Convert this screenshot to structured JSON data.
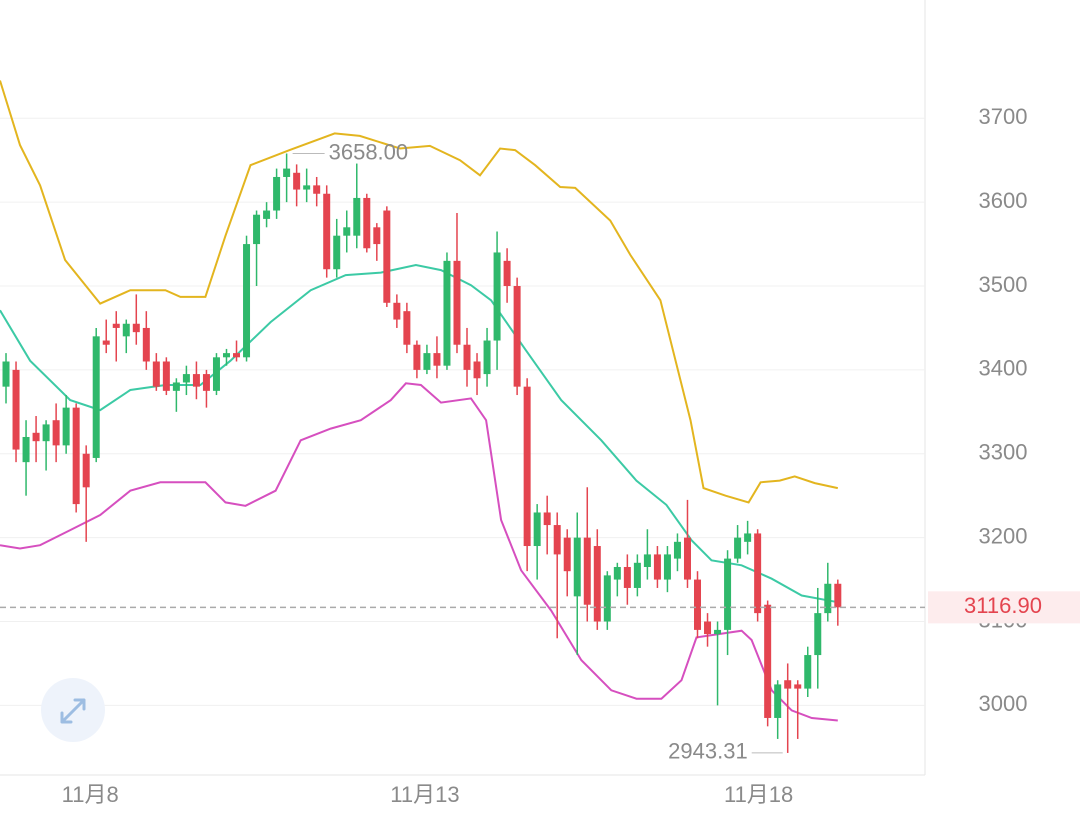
{
  "chart_data": {
    "type": "candlestick",
    "up_color": "#2fb86b",
    "down_color": "#e4444f",
    "ohlc": [
      [
        3380,
        3420,
        3360,
        3410
      ],
      [
        3400,
        3410,
        3290,
        3305
      ],
      [
        3290,
        3340,
        3250,
        3320
      ],
      [
        3325,
        3345,
        3290,
        3315
      ],
      [
        3315,
        3340,
        3280,
        3335
      ],
      [
        3340,
        3360,
        3290,
        3310
      ],
      [
        3310,
        3370,
        3300,
        3355
      ],
      [
        3355,
        3360,
        3230,
        3240
      ],
      [
        3300,
        3310,
        3195,
        3260
      ],
      [
        3295,
        3450,
        3290,
        3440
      ],
      [
        3435,
        3460,
        3420,
        3430
      ],
      [
        3455,
        3470,
        3410,
        3450
      ],
      [
        3440,
        3460,
        3420,
        3455
      ],
      [
        3455,
        3490,
        3430,
        3445
      ],
      [
        3450,
        3470,
        3400,
        3410
      ],
      [
        3410,
        3420,
        3375,
        3380
      ],
      [
        3410,
        3415,
        3370,
        3375
      ],
      [
        3375,
        3390,
        3350,
        3385
      ],
      [
        3385,
        3405,
        3370,
        3395
      ],
      [
        3395,
        3410,
        3365,
        3380
      ],
      [
        3395,
        3400,
        3355,
        3375
      ],
      [
        3375,
        3420,
        3370,
        3415
      ],
      [
        3415,
        3425,
        3405,
        3420
      ],
      [
        3420,
        3435,
        3410,
        3415
      ],
      [
        3415,
        3560,
        3410,
        3550
      ],
      [
        3550,
        3590,
        3500,
        3585
      ],
      [
        3580,
        3600,
        3570,
        3590
      ],
      [
        3590,
        3640,
        3580,
        3630
      ],
      [
        3630,
        3658,
        3600,
        3640
      ],
      [
        3635,
        3645,
        3595,
        3615
      ],
      [
        3615,
        3640,
        3600,
        3620
      ],
      [
        3620,
        3630,
        3595,
        3610
      ],
      [
        3610,
        3620,
        3510,
        3520
      ],
      [
        3520,
        3580,
        3510,
        3560
      ],
      [
        3560,
        3590,
        3540,
        3570
      ],
      [
        3560,
        3646,
        3545,
        3605
      ],
      [
        3605,
        3610,
        3540,
        3545
      ],
      [
        3570,
        3575,
        3530,
        3550
      ],
      [
        3590,
        3595,
        3475,
        3480
      ],
      [
        3480,
        3490,
        3450,
        3460
      ],
      [
        3470,
        3480,
        3420,
        3430
      ],
      [
        3430,
        3435,
        3390,
        3400
      ],
      [
        3400,
        3430,
        3395,
        3420
      ],
      [
        3420,
        3440,
        3390,
        3405
      ],
      [
        3405,
        3540,
        3400,
        3530
      ],
      [
        3530,
        3587,
        3420,
        3430
      ],
      [
        3430,
        3450,
        3380,
        3400
      ],
      [
        3410,
        3420,
        3370,
        3390
      ],
      [
        3395,
        3450,
        3380,
        3435
      ],
      [
        3435,
        3565,
        3400,
        3540
      ],
      [
        3530,
        3545,
        3480,
        3500
      ],
      [
        3500,
        3510,
        3370,
        3380
      ],
      [
        3380,
        3390,
        3160,
        3190
      ],
      [
        3190,
        3240,
        3150,
        3230
      ],
      [
        3230,
        3250,
        3180,
        3215
      ],
      [
        3215,
        3230,
        3080,
        3180
      ],
      [
        3200,
        3210,
        3130,
        3160
      ],
      [
        3130,
        3230,
        3060,
        3200
      ],
      [
        3200,
        3260,
        3100,
        3120
      ],
      [
        3190,
        3210,
        3090,
        3100
      ],
      [
        3100,
        3160,
        3090,
        3155
      ],
      [
        3150,
        3170,
        3130,
        3165
      ],
      [
        3165,
        3180,
        3120,
        3140
      ],
      [
        3140,
        3180,
        3130,
        3170
      ],
      [
        3165,
        3210,
        3150,
        3180
      ],
      [
        3180,
        3190,
        3140,
        3150
      ],
      [
        3150,
        3190,
        3135,
        3180
      ],
      [
        3175,
        3205,
        3160,
        3195
      ],
      [
        3200,
        3245,
        3140,
        3150
      ],
      [
        3150,
        3160,
        3080,
        3090
      ],
      [
        3100,
        3110,
        3070,
        3085
      ],
      [
        3085,
        3100,
        3000,
        3090
      ],
      [
        3090,
        3185,
        3060,
        3175
      ],
      [
        3175,
        3215,
        3170,
        3200
      ],
      [
        3195,
        3220,
        3180,
        3205
      ],
      [
        3205,
        3210,
        3100,
        3110
      ],
      [
        3120,
        3125,
        2975,
        2985
      ],
      [
        2985,
        3030,
        2960,
        3025
      ],
      [
        3030,
        3050,
        2943.31,
        3020
      ],
      [
        3025,
        3030,
        2960,
        3020
      ],
      [
        3020,
        3070,
        3010,
        3060
      ],
      [
        3060,
        3140,
        3020,
        3110
      ],
      [
        3110,
        3170,
        3100,
        3145
      ],
      [
        3145,
        3150,
        3095,
        3116.9
      ]
    ],
    "bands": [
      {
        "color": "#e3b51f",
        "x": [
          -0.6,
          1.4,
          3.4,
          5.9,
          9.4,
          12.4,
          15.9,
          17.4,
          19.9,
          21.9,
          24.4,
          28.3,
          32.8,
          35.3,
          39.3,
          42.3,
          45.3,
          47.3,
          49.3,
          50.8,
          52.8,
          55.3,
          56.8,
          60.3,
          62.3,
          65.3,
          68.3,
          69.6,
          71.8,
          74.1,
          75.3,
          77.2,
          78.7,
          80.7,
          83.0
        ],
        "values": [
          3745,
          3668,
          3620,
          3531,
          3479,
          3495,
          3495,
          3487,
          3487,
          3560,
          3644,
          3662,
          3682,
          3679,
          3664,
          3667,
          3650,
          3632,
          3664,
          3662,
          3644,
          3618,
          3617,
          3578,
          3537,
          3483,
          3340,
          3259,
          3250,
          3242,
          3266,
          3268,
          3273,
          3265,
          3259
        ]
      },
      {
        "color": "#3ccaa5",
        "x": [
          -0.6,
          2.4,
          6.4,
          9.4,
          12.4,
          15.9,
          19.4,
          22.4,
          26.4,
          30.4,
          33.9,
          37.4,
          40.9,
          43.4,
          46.4,
          48.4,
          51.9,
          55.4,
          59.4,
          62.9,
          65.9,
          68.4,
          70.4,
          73.4,
          76.4,
          79.4,
          83.0
        ],
        "values": [
          3471,
          3411,
          3364,
          3352,
          3376,
          3382,
          3382,
          3411,
          3457,
          3495,
          3513,
          3516,
          3525,
          3519,
          3501,
          3483,
          3423,
          3364,
          3316,
          3268,
          3239,
          3197,
          3173,
          3167,
          3151,
          3131,
          3123
        ]
      },
      {
        "color": "#d64fbf",
        "x": [
          -0.6,
          1.4,
          3.4,
          6.4,
          9.4,
          12.4,
          15.4,
          19.9,
          21.9,
          23.9,
          26.9,
          29.4,
          32.4,
          35.4,
          38.4,
          39.9,
          41.4,
          43.4,
          46.4,
          47.9,
          49.4,
          51.4,
          54.4,
          57.4,
          60.4,
          62.9,
          65.4,
          67.4,
          68.9,
          73.4,
          74.4,
          76.4,
          78.4,
          80.4,
          83.0
        ],
        "values": [
          3191,
          3187,
          3191,
          3209,
          3227,
          3256,
          3266,
          3266,
          3242,
          3238,
          3256,
          3316,
          3330,
          3340,
          3364,
          3384,
          3382,
          3361,
          3366,
          3340,
          3221,
          3161,
          3113,
          3054,
          3018,
          3008,
          3008,
          3030,
          3081,
          3089,
          3078,
          3018,
          2994,
          2985,
          2982
        ]
      }
    ],
    "high_label": "3658.00",
    "low_label": "2943.31",
    "last_price_label": "3116.90",
    "xlim": [
      -0.6,
      91.7
    ],
    "ylim": [
      2917,
      3841
    ],
    "yticks": [
      3000,
      3100,
      3200,
      3300,
      3400,
      3500,
      3600,
      3700
    ],
    "xticks": [
      {
        "value": 8.4,
        "label": "11月8"
      },
      {
        "value": 41.8,
        "label": "11月13"
      },
      {
        "value": 75.1,
        "label": "11月18"
      }
    ],
    "grid": true
  }
}
